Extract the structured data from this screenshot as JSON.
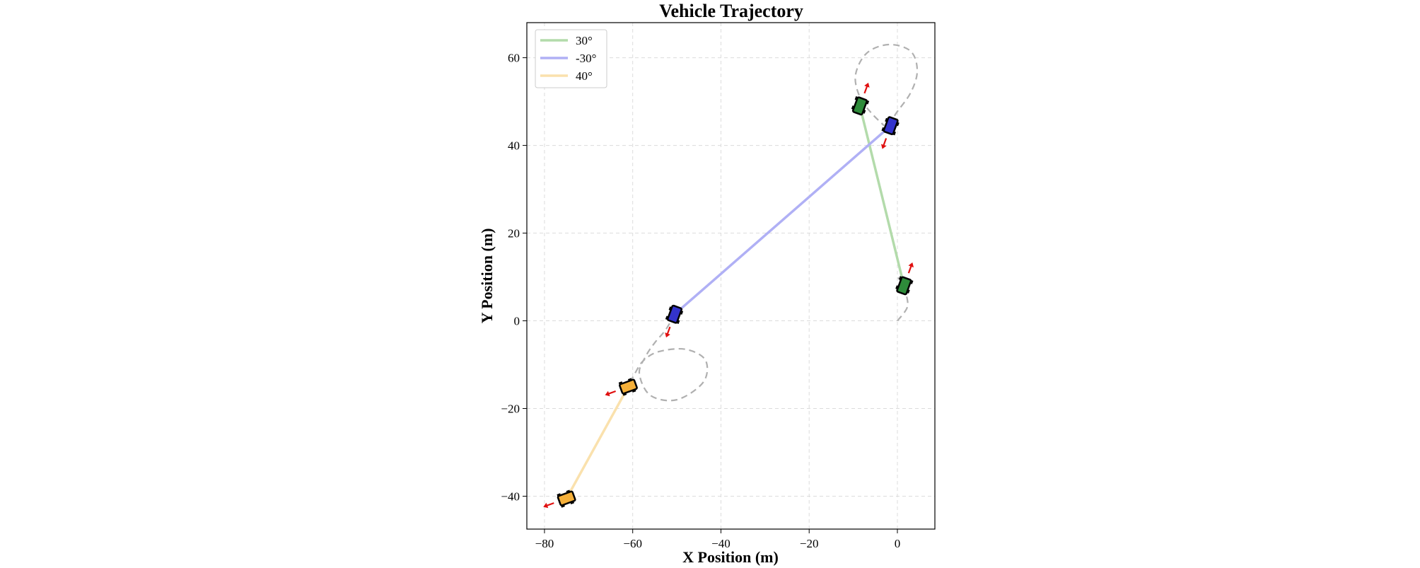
{
  "chart_data": {
    "type": "line",
    "title": "Vehicle Trajectory",
    "xlabel": "X Position (m)",
    "ylabel": "Y Position (m)",
    "xlim": [
      -84,
      8.5
    ],
    "ylim": [
      -47.5,
      68
    ],
    "xticks": [
      -80,
      -60,
      -40,
      -20,
      0
    ],
    "yticks": [
      -40,
      -20,
      0,
      20,
      40,
      60
    ],
    "grid": true,
    "legend_position": "top-left",
    "legend_entries": [
      {
        "label": "30°",
        "color": "#b3dbab"
      },
      {
        "label": "-30°",
        "color": "#b0b0f5"
      },
      {
        "label": "40°",
        "color": "#fae1ad"
      }
    ],
    "series": [
      {
        "name": "30°",
        "color": "#b3dbab",
        "x": [
          1.5,
          -8.5
        ],
        "y": [
          8,
          49
        ]
      },
      {
        "name": "-30°",
        "color": "#b0b0f5",
        "x": [
          -50.5,
          -1.5
        ],
        "y": [
          1.5,
          44.5
        ]
      },
      {
        "name": "40°",
        "color": "#fae1ad",
        "x": [
          -61,
          -75
        ],
        "y": [
          -15,
          -40.5
        ]
      }
    ],
    "reference_path": {
      "color": "#b0b0b0",
      "segments": [
        {
          "x": [
            0,
            2.2,
            2,
            0.8,
            0
          ],
          "y": [
            0,
            3,
            6,
            9,
            10
          ]
        },
        {
          "x": [
            -1.5,
            -0.5,
            3,
            4.5,
            3,
            -2,
            -7,
            -9.5,
            -8.5,
            -6,
            -3
          ],
          "y": [
            44.5,
            47,
            52,
            57,
            61.5,
            63,
            61,
            56,
            51,
            47.5,
            44.5
          ]
        },
        {
          "x": [
            -50.5,
            -52.5,
            -55,
            -57,
            -58.5,
            -56,
            -50,
            -44,
            -43.5,
            -48,
            -54,
            -57.5,
            -59.5,
            -61
          ],
          "y": [
            1.5,
            -2,
            -5,
            -8,
            -12,
            -17,
            -18,
            -14,
            -9,
            -6.5,
            -7,
            -9,
            -12,
            -15
          ]
        }
      ]
    },
    "vehicles": [
      {
        "series": "30°",
        "x": 1.5,
        "y": 8,
        "body_color": "#2e8b3a",
        "heading_deg": 70
      },
      {
        "series": "30°",
        "x": -8.5,
        "y": 49,
        "body_color": "#2e8b3a",
        "heading_deg": 70
      },
      {
        "series": "-30°",
        "x": -1.5,
        "y": 44.5,
        "body_color": "#3333cc",
        "heading_deg": 250
      },
      {
        "series": "-30°",
        "x": -50.5,
        "y": 1.5,
        "body_color": "#3333cc",
        "heading_deg": 250
      },
      {
        "series": "40°",
        "x": -61,
        "y": -15,
        "body_color": "#f5b03a",
        "heading_deg": 200
      },
      {
        "series": "40°",
        "x": -75,
        "y": -40.5,
        "body_color": "#f5b03a",
        "heading_deg": 200
      }
    ]
  }
}
